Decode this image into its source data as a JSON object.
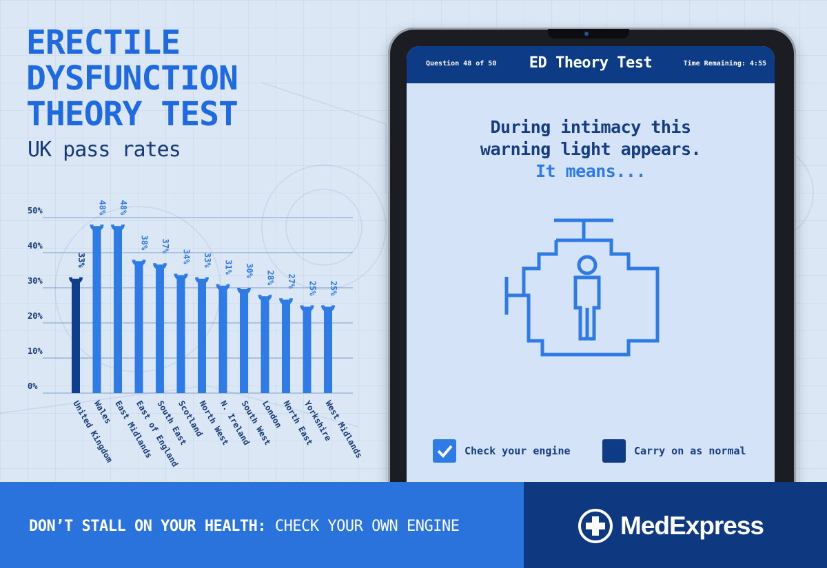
{
  "header": {
    "title_lines": [
      "ERECTILE",
      "DYSFUNCTION",
      "THEORY TEST"
    ],
    "subtitle": "UK pass rates"
  },
  "colors": {
    "bar_highlight": "#0e3f8c",
    "bar_default": "#2f7be6",
    "background": "#dbe7f5",
    "footer_left": "#2a73dd",
    "footer_right": "#0e3980"
  },
  "chart_data": {
    "type": "bar",
    "title": "UK pass rates",
    "categories": [
      "United Kingdom",
      "Wales",
      "East Midlands",
      "East of England",
      "South East",
      "Scotland",
      "North West",
      "N. Ireland",
      "South West",
      "London",
      "North East",
      "Yorkshire",
      "West Midlands"
    ],
    "values": [
      33,
      48,
      48,
      38,
      37,
      34,
      33,
      31,
      30,
      28,
      27,
      25,
      25
    ],
    "value_labels": [
      "33%",
      "48%",
      "48%",
      "38%",
      "37%",
      "34%",
      "33%",
      "31%",
      "30%",
      "28%",
      "27%",
      "25%",
      "25%"
    ],
    "highlight_index": 0,
    "yticks": [
      "0%",
      "10%",
      "20%",
      "30%",
      "40%",
      "50%"
    ],
    "ylim": [
      0,
      50
    ],
    "xlabel": "",
    "ylabel": "",
    "grid": true
  },
  "tablet": {
    "question_counter": "Question 48 of 50",
    "screen_title": "ED Theory Test",
    "time_remaining": "Time Remaining: 4:55",
    "question_line1": "During intimacy this",
    "question_line2": "warning light appears.",
    "question_line3": "It means...",
    "icon": "engine-warning-person-icon",
    "options": [
      {
        "label": "Check your engine",
        "checked": true
      },
      {
        "label": "Carry on as normal",
        "checked": false
      }
    ]
  },
  "footer": {
    "slogan_bold": "DON’T STALL ON YOUR HEALTH:",
    "slogan_rest": " CHECK YOUR OWN ENGINE",
    "brand": "MedExpress"
  }
}
